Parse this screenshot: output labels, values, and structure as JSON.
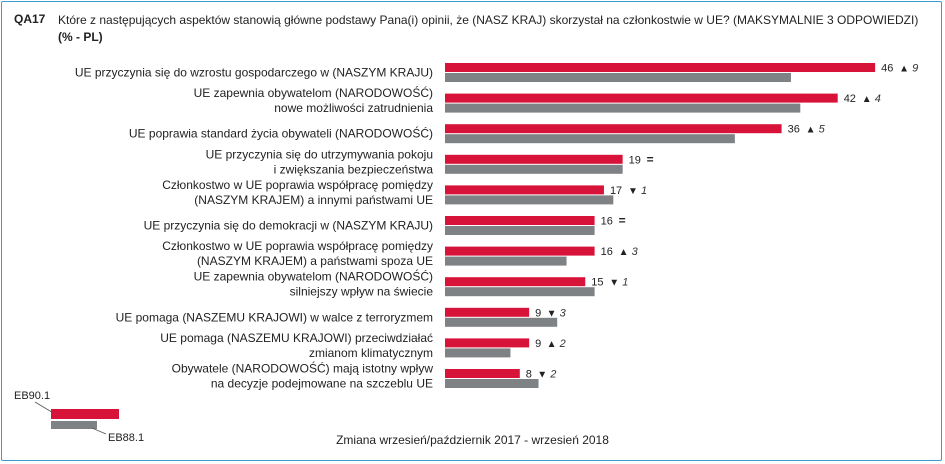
{
  "question": {
    "code": "QA17",
    "text": "Które z następujących aspektów stanowią główne podstawy Pana(i) opinii, że (NASZ KRAJ) skorzystał na członkostwie w UE? (MAKSYMALNIE 3 ODPOWIEDZI)",
    "subtext": "(% - PL)"
  },
  "legend": {
    "current": "EB90.1",
    "previous": "EB88.1"
  },
  "footer": "Zmiana wrzesień/październik 2017 - wrzesień 2018",
  "colors": {
    "current": "#d8133a",
    "previous": "#7f8285",
    "border": "#3a9bd5"
  },
  "chart_data": {
    "type": "bar",
    "orientation": "horizontal",
    "categories": [
      [
        "UE przyczynia się do wzrostu gospodarczego w (NASZYM KRAJU)"
      ],
      [
        "UE zapewnia obywatelom (NARODOWOŚĆ)",
        "nowe możliwości zatrudnienia"
      ],
      [
        "UE poprawia standard życia obywateli (NARODOWOŚĆ)"
      ],
      [
        "UE przyczynia się do utrzymywania pokoju",
        "i zwiększania bezpieczeństwa"
      ],
      [
        "Członkostwo w UE poprawia współpracę pomiędzy",
        "(NASZYM KRAJEM) a innymi państwami UE"
      ],
      [
        "UE przyczynia się do demokracji w (NASZYM KRAJU)"
      ],
      [
        "Członkostwo w UE poprawia współpracę pomiędzy",
        "(NASZYM KRAJEM) a państwami spoza UE"
      ],
      [
        "UE zapewnia obywatelom (NARODOWOŚĆ)",
        "silniejszy wpływ na świecie"
      ],
      [
        "UE pomaga (NASZEMU KRAJOWI) w walce z terroryzmem"
      ],
      [
        "UE pomaga (NASZEMU KRAJOWI) przeciwdziałać",
        "zmianom klimatycznym"
      ],
      [
        "Obywatele (NARODOWOŚĆ) mają istotny wpływ",
        "na decyzje podejmowane na szczeblu UE"
      ]
    ],
    "series": [
      {
        "name": "EB90.1",
        "values": [
          46,
          42,
          36,
          19,
          17,
          16,
          16,
          15,
          9,
          9,
          8
        ]
      },
      {
        "name": "EB88.1",
        "values": [
          37,
          38,
          31,
          19,
          18,
          16,
          13,
          16,
          12,
          7,
          10
        ]
      }
    ],
    "change": [
      {
        "symbol": "▲",
        "value": "9"
      },
      {
        "symbol": "▲",
        "value": "4"
      },
      {
        "symbol": "▲",
        "value": "5"
      },
      {
        "symbol": "=",
        "value": ""
      },
      {
        "symbol": "▼",
        "value": "1"
      },
      {
        "symbol": "=",
        "value": ""
      },
      {
        "symbol": "▲",
        "value": "3"
      },
      {
        "symbol": "▼",
        "value": "1"
      },
      {
        "symbol": "▼",
        "value": "3"
      },
      {
        "symbol": "▲",
        "value": "2"
      },
      {
        "symbol": "▼",
        "value": "2"
      }
    ],
    "xlim": [
      0,
      50
    ]
  }
}
